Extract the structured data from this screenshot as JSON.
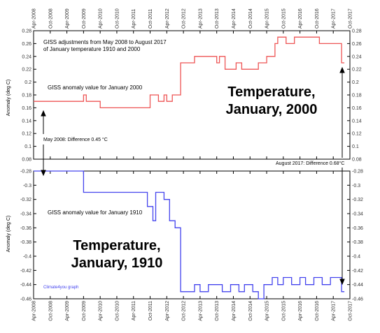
{
  "colors": {
    "red": "#ee5555",
    "blue": "#4444ee",
    "axis": "#000000"
  },
  "chart_data": [
    {
      "type": "line",
      "title": "GISS adjustments from May 2008 to August 2017",
      "subtitle": "of January temperature 1910 and 2000",
      "series_label": "GISS anomaly value for January 2000",
      "big_label_line1": "Temperature,",
      "big_label_line2": "January, 2000",
      "ylabel": "Anomaly (deg C)",
      "ylim": [
        0.08,
        0.28
      ],
      "yticks": [
        "0.28",
        "0.26",
        "0.24",
        "0.22",
        "0.2",
        "0.18",
        "0.16",
        "0.14",
        "0.12",
        "0.1",
        "0.08"
      ],
      "series": [
        {
          "x": [
            "2008-04",
            "2009-10",
            "2009-10",
            "2009-11",
            "2009-11",
            "2010-04",
            "2010-04",
            "2011-10",
            "2011-10",
            "2012-01",
            "2012-01",
            "2012-03",
            "2012-03",
            "2012-04",
            "2012-04",
            "2012-06",
            "2012-06",
            "2012-09",
            "2012-09",
            "2013-02",
            "2013-02",
            "2013-10",
            "2013-10",
            "2013-11",
            "2013-11",
            "2014-01",
            "2014-01",
            "2014-05",
            "2014-05",
            "2014-06",
            "2014-06",
            "2014-07",
            "2014-07",
            "2015-01",
            "2015-01",
            "2015-04",
            "2015-04",
            "2015-07",
            "2015-07",
            "2015-08",
            "2015-08",
            "2015-11",
            "2015-11",
            "2016-02",
            "2016-02",
            "2016-11",
            "2016-11",
            "2016-12",
            "2016-12",
            "2017-07",
            "2017-07",
            "2017-08"
          ],
          "y": [
            0.17,
            0.17,
            0.18,
            0.18,
            0.17,
            0.17,
            0.16,
            0.16,
            0.18,
            0.18,
            0.17,
            0.17,
            0.18,
            0.18,
            0.17,
            0.17,
            0.18,
            0.18,
            0.23,
            0.23,
            0.24,
            0.24,
            0.23,
            0.23,
            0.24,
            0.24,
            0.22,
            0.22,
            0.23,
            0.23,
            0.23,
            0.23,
            0.22,
            0.22,
            0.23,
            0.23,
            0.24,
            0.24,
            0.26,
            0.26,
            0.27,
            0.27,
            0.26,
            0.26,
            0.27,
            0.27,
            0.26,
            0.26,
            0.26,
            0.26,
            0.23,
            0.23
          ]
        }
      ],
      "annotation_left": "May 2008: Difference 0.45 °C",
      "annotation_right": "August 2017: Difference 0.68°C"
    },
    {
      "type": "line",
      "series_label": "GISS anomaly value for January 1910",
      "big_label_line1": "Temperature,",
      "big_label_line2": "January, 1910",
      "ylabel": "Anomaly (deg C)",
      "ylim": [
        -0.46,
        -0.28
      ],
      "yticks": [
        "-0.28",
        "-0.3",
        "-0.32",
        "-0.34",
        "-0.36",
        "-0.38",
        "-0.4",
        "-0.42",
        "-0.44",
        "-0.46"
      ],
      "credit": "Climate4you graph",
      "series": [
        {
          "x": [
            "2008-04",
            "2009-10",
            "2009-10",
            "2011-09",
            "2011-09",
            "2011-11",
            "2011-11",
            "2011-12",
            "2011-12",
            "2012-03",
            "2012-03",
            "2012-05",
            "2012-05",
            "2012-07",
            "2012-07",
            "2012-09",
            "2012-09",
            "2013-02",
            "2013-02",
            "2013-04",
            "2013-04",
            "2013-07",
            "2013-07",
            "2013-12",
            "2013-12",
            "2014-03",
            "2014-03",
            "2014-06",
            "2014-06",
            "2014-08",
            "2014-08",
            "2014-11",
            "2014-11",
            "2015-01",
            "2015-01",
            "2015-03",
            "2015-03",
            "2015-06",
            "2015-06",
            "2015-08",
            "2015-08",
            "2015-10",
            "2015-10",
            "2016-01",
            "2016-01",
            "2016-04",
            "2016-04",
            "2016-06",
            "2016-06",
            "2016-09",
            "2016-09",
            "2016-12",
            "2016-12",
            "2017-03",
            "2017-03",
            "2017-07",
            "2017-07",
            "2017-08"
          ],
          "y": [
            -0.28,
            -0.28,
            -0.31,
            -0.31,
            -0.33,
            -0.33,
            -0.35,
            -0.35,
            -0.31,
            -0.31,
            -0.32,
            -0.32,
            -0.35,
            -0.35,
            -0.36,
            -0.36,
            -0.45,
            -0.45,
            -0.44,
            -0.44,
            -0.45,
            -0.45,
            -0.44,
            -0.44,
            -0.45,
            -0.45,
            -0.44,
            -0.44,
            -0.45,
            -0.45,
            -0.44,
            -0.44,
            -0.45,
            -0.45,
            -0.46,
            -0.46,
            -0.44,
            -0.44,
            -0.43,
            -0.43,
            -0.44,
            -0.44,
            -0.43,
            -0.43,
            -0.44,
            -0.44,
            -0.43,
            -0.43,
            -0.44,
            -0.44,
            -0.43,
            -0.43,
            -0.44,
            -0.44,
            -0.43,
            -0.43,
            -0.45,
            -0.45
          ]
        }
      ]
    }
  ],
  "x_ticks": [
    "Apr-2008",
    "Oct-2008",
    "Apr-2009",
    "Oct-2009",
    "Apr-2010",
    "Oct-2010",
    "Apr-2011",
    "Oct-2011",
    "Apr-2012",
    "Oct-2012",
    "Apr-2013",
    "Oct-2013",
    "Apr-2014",
    "Oct-2014",
    "Apr-2015",
    "Oct-2015",
    "Apr-2016",
    "Oct-2016",
    "Apr-2017",
    "Oct-2017"
  ]
}
